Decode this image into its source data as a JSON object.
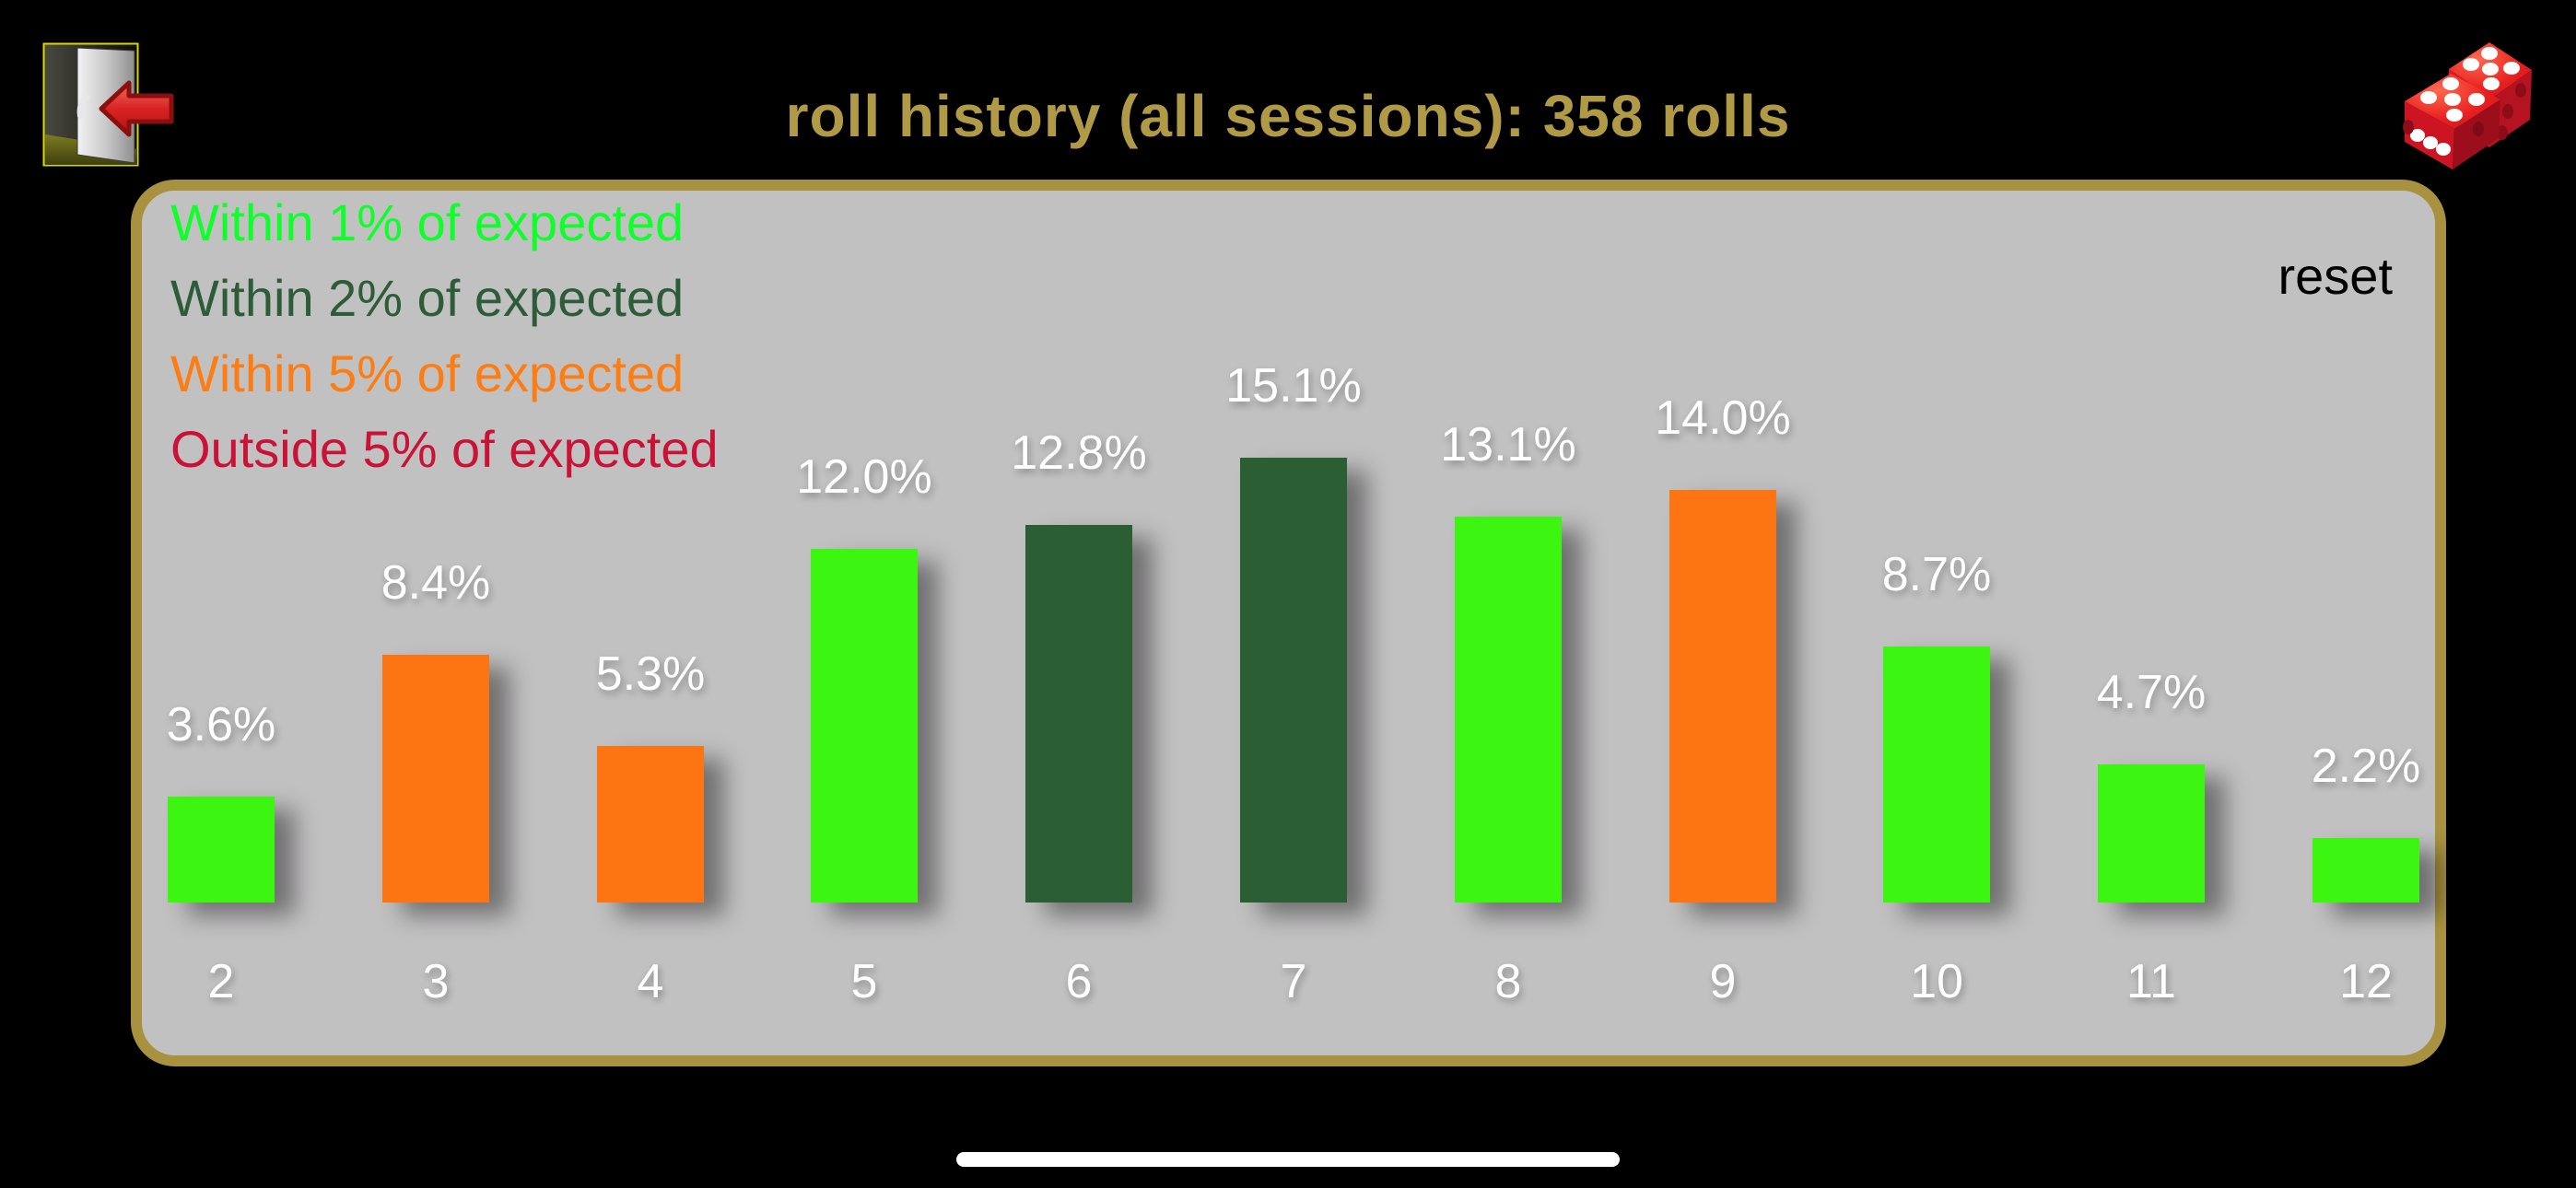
{
  "header": {
    "title": "roll history (all sessions): 358 rolls"
  },
  "icons": {
    "top_left": "exit-door-icon",
    "top_right": "dice-icon",
    "bottom": "home-indicator"
  },
  "panel": {
    "reset_label": "reset"
  },
  "colors": {
    "background": "#000000",
    "title_text": "#b19a46",
    "panel_background": "#c2c1c2",
    "panel_border": "#a8923f",
    "value_label_text": "#ffffff",
    "category_label_text": "#ffffff",
    "reset_text": "#000000",
    "bright_green": "#3cf511",
    "dark_green": "#2b5f33",
    "orange": "#fd7412",
    "crimson": "#ca1236"
  },
  "chart_data": {
    "type": "bar",
    "title": "roll history (all sessions): 358 rolls",
    "total_rolls": 358,
    "categories": [
      "2",
      "3",
      "4",
      "5",
      "6",
      "7",
      "8",
      "9",
      "10",
      "11",
      "12"
    ],
    "values": [
      3.6,
      8.4,
      5.3,
      12.0,
      12.8,
      15.1,
      13.1,
      14.0,
      8.7,
      4.7,
      2.2
    ],
    "value_labels": [
      "3.6%",
      "8.4%",
      "5.3%",
      "12.0%",
      "12.8%",
      "15.1%",
      "13.1%",
      "14.0%",
      "8.7%",
      "4.7%",
      "2.2%"
    ],
    "bar_colors": [
      "#3cf511",
      "#fd7412",
      "#fd7412",
      "#3cf511",
      "#2b5f33",
      "#2b5f33",
      "#3cf511",
      "#fd7412",
      "#3cf511",
      "#3cf511",
      "#3cf511"
    ],
    "legend": [
      {
        "label": "Within 1% of expected",
        "color": "#0fff2b"
      },
      {
        "label": "Within 2% of expected",
        "color": "#2d5c38"
      },
      {
        "label": "Within 5% of expected",
        "color": "#fd7d15"
      },
      {
        "label": "Outside 5% of expected",
        "color": "#ca1236"
      }
    ],
    "legend_position": "top-left",
    "xlabel": "",
    "ylabel": "",
    "unit": "%",
    "ylim": [
      0,
      16
    ],
    "grid": false
  }
}
